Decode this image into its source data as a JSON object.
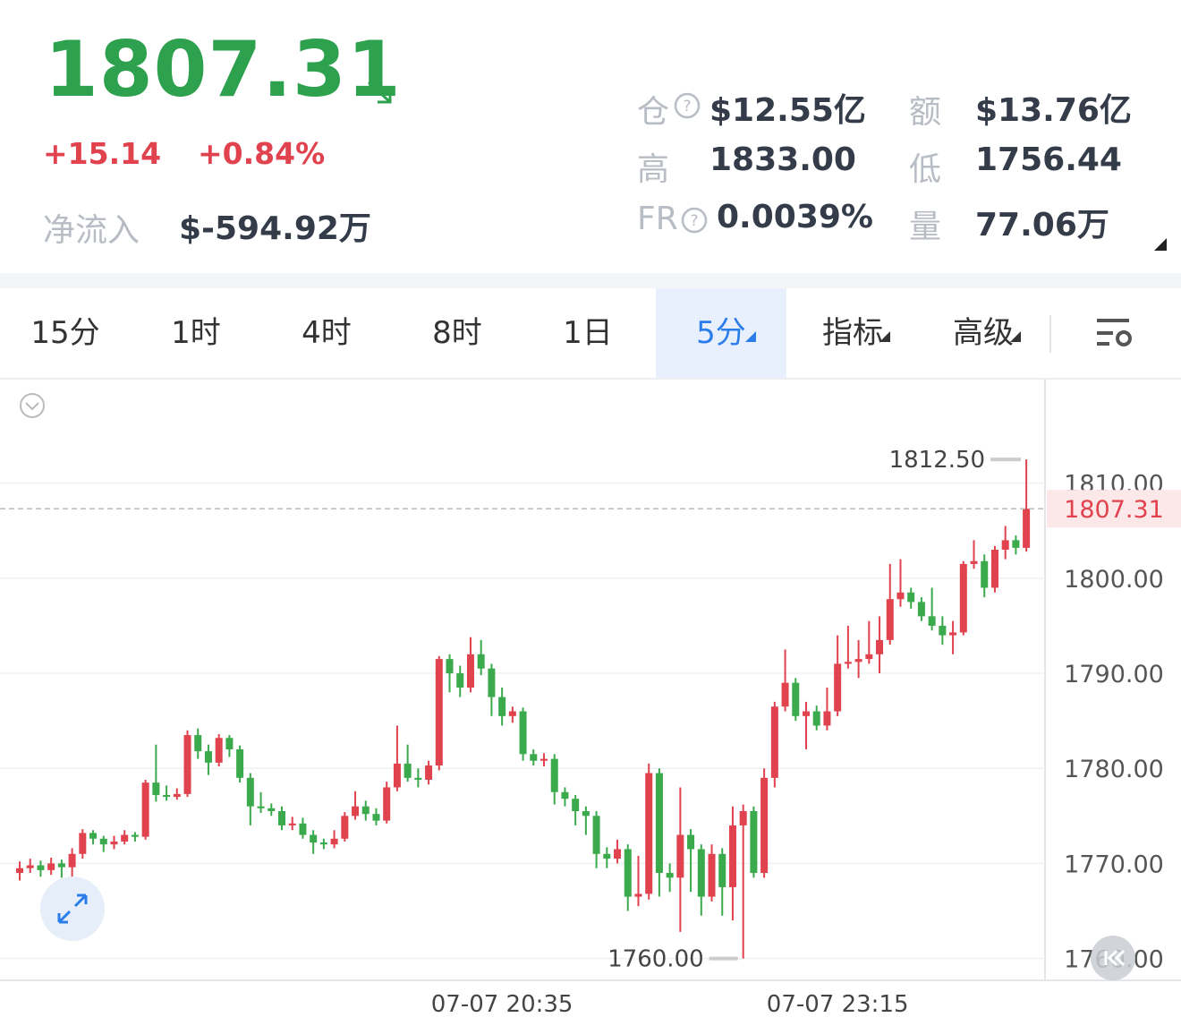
{
  "header": {
    "price": "1807.31",
    "change": "+15.14",
    "change_pct": "+0.84%",
    "net_inflow_label": "净流入",
    "net_inflow": "$-594.92万"
  },
  "stats": [
    {
      "label": "仓",
      "value": "$12.55亿"
    },
    {
      "label": "额",
      "value": "$13.76亿"
    },
    {
      "label": "高",
      "value": "1833.00"
    },
    {
      "label": "低",
      "value": "1756.44"
    },
    {
      "label": "FR",
      "value": "0.0039%"
    },
    {
      "label": "量",
      "value": "77.06万"
    }
  ],
  "tabs": [
    "15分",
    "1时",
    "4时",
    "8时",
    "1日",
    "5分",
    "指标",
    "高级"
  ],
  "chart_data": {
    "type": "candlestick",
    "x": [
      null,
      null,
      null,
      null,
      null,
      null,
      null,
      null,
      null,
      null,
      null,
      null,
      null,
      null,
      null,
      null,
      null,
      null,
      null,
      null,
      null,
      null,
      null,
      null,
      null,
      null,
      null,
      null,
      null,
      null,
      null,
      null,
      null,
      null,
      null,
      null,
      null,
      null,
      null,
      null,
      null,
      null,
      null,
      null,
      null,
      null,
      "07-07 20:35",
      null,
      null,
      null,
      null,
      null,
      null,
      null,
      null,
      null,
      null,
      null,
      null,
      null,
      null,
      null,
      null,
      null,
      null,
      null,
      null,
      null,
      null,
      null,
      null,
      null,
      null,
      null,
      null,
      null,
      null,
      null,
      "07-07 23:15",
      null,
      null,
      null,
      null,
      null,
      null,
      null,
      null,
      null,
      null,
      null,
      null,
      null,
      null,
      null,
      null,
      null,
      null
    ],
    "candles": [
      [
        1769.0,
        1770.2,
        1768.2,
        1769.5
      ],
      [
        1769.5,
        1770.5,
        1769.0,
        1769.8
      ],
      [
        1769.8,
        1770.3,
        1768.6,
        1769.3
      ],
      [
        1769.3,
        1770.6,
        1768.8,
        1770.0
      ],
      [
        1770.0,
        1770.4,
        1768.5,
        1769.6
      ],
      [
        1769.6,
        1771.6,
        1768.0,
        1771.0
      ],
      [
        1771.0,
        1773.6,
        1770.5,
        1773.2
      ],
      [
        1773.2,
        1773.5,
        1772.0,
        1772.6
      ],
      [
        1772.6,
        1772.9,
        1771.2,
        1772.0
      ],
      [
        1772.0,
        1772.9,
        1771.5,
        1772.3
      ],
      [
        1772.3,
        1773.5,
        1772.0,
        1773.0
      ],
      [
        1773.0,
        1773.3,
        1772.3,
        1772.8
      ],
      [
        1772.8,
        1778.8,
        1772.5,
        1778.5
      ],
      [
        1778.5,
        1782.5,
        1776.5,
        1777.2
      ],
      [
        1777.2,
        1778.2,
        1776.6,
        1777.0
      ],
      [
        1777.0,
        1777.9,
        1776.7,
        1777.3
      ],
      [
        1777.3,
        1784.0,
        1777.0,
        1783.5
      ],
      [
        1783.5,
        1784.2,
        1781.0,
        1781.8
      ],
      [
        1781.8,
        1782.5,
        1779.3,
        1780.6
      ],
      [
        1780.6,
        1783.6,
        1780.2,
        1783.2
      ],
      [
        1783.2,
        1783.5,
        1781.2,
        1782.0
      ],
      [
        1782.0,
        1782.4,
        1778.5,
        1779.0
      ],
      [
        1779.0,
        1779.5,
        1774.0,
        1776.0
      ],
      [
        1776.0,
        1777.5,
        1775.3,
        1775.8
      ],
      [
        1775.8,
        1776.3,
        1775.0,
        1775.5
      ],
      [
        1775.5,
        1776.0,
        1773.5,
        1774.0
      ],
      [
        1774.0,
        1774.9,
        1773.5,
        1774.2
      ],
      [
        1774.2,
        1774.8,
        1772.6,
        1773.0
      ],
      [
        1773.0,
        1773.5,
        1771.0,
        1772.2
      ],
      [
        1772.2,
        1772.6,
        1771.5,
        1772.0
      ],
      [
        1772.0,
        1773.5,
        1771.6,
        1772.6
      ],
      [
        1772.6,
        1775.4,
        1772.3,
        1775.0
      ],
      [
        1775.0,
        1777.6,
        1774.6,
        1776.0
      ],
      [
        1776.0,
        1776.6,
        1774.5,
        1775.2
      ],
      [
        1775.2,
        1775.8,
        1774.0,
        1774.5
      ],
      [
        1774.5,
        1778.6,
        1774.2,
        1778.0
      ],
      [
        1778.0,
        1784.5,
        1777.6,
        1780.5
      ],
      [
        1780.5,
        1782.5,
        1778.6,
        1779.0
      ],
      [
        1779.0,
        1780.0,
        1778.0,
        1778.8
      ],
      [
        1778.8,
        1780.8,
        1778.3,
        1780.3
      ],
      [
        1780.3,
        1791.8,
        1779.8,
        1791.5
      ],
      [
        1791.5,
        1792.0,
        1788.0,
        1790.0
      ],
      [
        1790.0,
        1790.8,
        1787.5,
        1788.5
      ],
      [
        1788.5,
        1793.8,
        1788.0,
        1792.0
      ],
      [
        1792.0,
        1793.5,
        1789.8,
        1790.5
      ],
      [
        1790.5,
        1791.0,
        1785.5,
        1787.5
      ],
      [
        1787.5,
        1788.5,
        1784.5,
        1785.5
      ],
      [
        1785.5,
        1786.5,
        1784.8,
        1786.0
      ],
      [
        1786.0,
        1786.4,
        1780.8,
        1781.5
      ],
      [
        1781.5,
        1782.0,
        1780.3,
        1780.8
      ],
      [
        1780.8,
        1781.6,
        1780.2,
        1781.0
      ],
      [
        1781.0,
        1781.5,
        1776.2,
        1777.5
      ],
      [
        1777.5,
        1778.0,
        1776.0,
        1776.8
      ],
      [
        1776.8,
        1777.2,
        1774.0,
        1775.5
      ],
      [
        1775.5,
        1776.0,
        1773.0,
        1775.0
      ],
      [
        1775.0,
        1775.5,
        1769.5,
        1771.0
      ],
      [
        1771.0,
        1771.7,
        1769.5,
        1770.5
      ],
      [
        1770.5,
        1772.5,
        1770.0,
        1771.5
      ],
      [
        1771.5,
        1772.0,
        1765.0,
        1766.5
      ],
      [
        1766.5,
        1770.8,
        1765.5,
        1766.8
      ],
      [
        1766.8,
        1780.5,
        1766.2,
        1779.5
      ],
      [
        1779.5,
        1780.0,
        1766.5,
        1769.0
      ],
      [
        1769.0,
        1770.0,
        1767.0,
        1768.5
      ],
      [
        1768.5,
        1778.0,
        1762.8,
        1773.0
      ],
      [
        1773.0,
        1773.6,
        1767.0,
        1771.5
      ],
      [
        1771.5,
        1772.0,
        1764.5,
        1766.5
      ],
      [
        1766.5,
        1772.0,
        1766.0,
        1771.0
      ],
      [
        1771.0,
        1771.6,
        1764.5,
        1767.5
      ],
      [
        1767.5,
        1776.0,
        1764.0,
        1774.0
      ],
      [
        1774.0,
        1776.2,
        1760.0,
        1775.5
      ],
      [
        1775.5,
        1776.0,
        1768.5,
        1769.0
      ],
      [
        1769.0,
        1780.0,
        1768.5,
        1779.0
      ],
      [
        1779.0,
        1787.0,
        1778.0,
        1786.5
      ],
      [
        1786.5,
        1792.5,
        1786.0,
        1789.0
      ],
      [
        1789.0,
        1789.5,
        1785.0,
        1785.5
      ],
      [
        1785.5,
        1787.0,
        1782.0,
        1786.0
      ],
      [
        1786.0,
        1786.6,
        1784.0,
        1784.5
      ],
      [
        1784.5,
        1788.5,
        1784.0,
        1786.0
      ],
      [
        1786.0,
        1794.0,
        1785.5,
        1791.0
      ],
      [
        1791.0,
        1795.0,
        1790.5,
        1791.2
      ],
      [
        1791.2,
        1793.5,
        1789.5,
        1791.5
      ],
      [
        1791.5,
        1795.5,
        1791.0,
        1792.0
      ],
      [
        1792.0,
        1796.0,
        1790.0,
        1793.5
      ],
      [
        1793.5,
        1801.5,
        1793.0,
        1797.8
      ],
      [
        1797.8,
        1802.0,
        1797.0,
        1798.5
      ],
      [
        1798.5,
        1799.0,
        1796.8,
        1797.5
      ],
      [
        1797.5,
        1798.0,
        1795.5,
        1796.0
      ],
      [
        1796.0,
        1799.0,
        1794.5,
        1795.0
      ],
      [
        1795.0,
        1796.0,
        1793.0,
        1794.0
      ],
      [
        1794.0,
        1795.5,
        1792.0,
        1794.3
      ],
      [
        1794.3,
        1801.8,
        1794.0,
        1801.5
      ],
      [
        1801.5,
        1804.0,
        1801.0,
        1801.8
      ],
      [
        1801.8,
        1802.5,
        1798.0,
        1799.0
      ],
      [
        1799.0,
        1803.4,
        1798.5,
        1803.0
      ],
      [
        1803.0,
        1805.5,
        1802.0,
        1804.0
      ],
      [
        1804.0,
        1804.5,
        1802.5,
        1803.2
      ],
      [
        1803.2,
        1812.5,
        1802.8,
        1807.31
      ]
    ],
    "up_color": "#e0424e",
    "down_color": "#3aaa4c",
    "ylim": [
      1757.7,
      1820.8
    ],
    "yticks": [
      {
        "value": 1760,
        "label": "1760.00"
      },
      {
        "value": 1770,
        "label": "1770.00"
      },
      {
        "value": 1780,
        "label": "1780.00"
      },
      {
        "value": 1790,
        "label": "1790.00"
      },
      {
        "value": 1800,
        "label": "1800.00"
      },
      {
        "value": 1810,
        "label": "1810.00"
      }
    ],
    "grid": true,
    "last_price": {
      "value": 1807.31,
      "label": "1807.31"
    },
    "max_marker": {
      "value": 1812.5,
      "label": "1812.50"
    },
    "min_marker": {
      "value": 1760,
      "label": "1760.00"
    }
  }
}
